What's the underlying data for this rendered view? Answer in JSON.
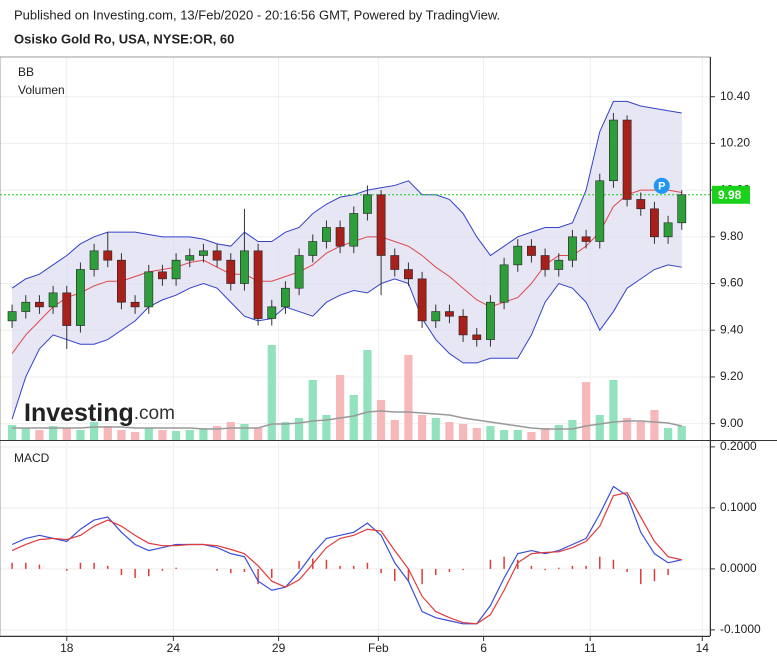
{
  "chart_data": [
    {
      "type": "candlestick",
      "subtitle": "Published on Investing.com, 13/Feb/2020 - 20:16:56 GMT, Powered by TradingView.",
      "title": "Osisko Gold Ro, USA, NYSE:OR, 60",
      "annotations": [
        "BB",
        "Volumen",
        "P"
      ],
      "logo": [
        "Investing",
        ".com"
      ],
      "x": [
        0,
        1,
        2,
        3,
        4,
        5,
        6,
        7,
        8,
        9,
        10,
        11,
        12,
        13,
        14,
        15,
        16,
        17,
        18,
        19,
        20,
        21,
        22,
        23,
        24,
        25,
        26,
        27,
        28,
        29,
        30,
        31,
        32,
        33,
        34,
        35,
        36,
        37,
        38,
        39,
        40,
        41,
        42,
        43,
        44,
        45,
        46,
        47,
        48,
        49
      ],
      "open": [
        9.44,
        9.48,
        9.52,
        9.5,
        9.56,
        9.42,
        9.66,
        9.74,
        9.7,
        9.52,
        9.5,
        9.65,
        9.62,
        9.7,
        9.72,
        9.74,
        9.7,
        9.6,
        9.74,
        9.45,
        9.5,
        9.58,
        9.72,
        9.78,
        9.84,
        9.76,
        9.9,
        9.98,
        9.72,
        9.66,
        9.62,
        9.44,
        9.48,
        9.46,
        9.38,
        9.36,
        9.52,
        9.68,
        9.76,
        9.72,
        9.66,
        9.7,
        9.8,
        9.78,
        10.04,
        10.3,
        9.96,
        9.92,
        9.8,
        9.86
      ],
      "high": [
        9.51,
        9.55,
        9.55,
        9.59,
        9.59,
        9.69,
        9.77,
        9.82,
        9.73,
        9.55,
        9.68,
        9.68,
        9.73,
        9.75,
        9.77,
        9.77,
        9.73,
        9.92,
        9.77,
        9.53,
        9.61,
        9.75,
        9.81,
        9.87,
        9.87,
        9.93,
        10.02,
        10.0,
        9.75,
        9.69,
        9.65,
        9.51,
        9.51,
        9.49,
        9.41,
        9.55,
        9.71,
        9.79,
        9.79,
        9.75,
        9.73,
        9.83,
        9.83,
        10.07,
        10.33,
        10.32,
        9.99,
        9.95,
        9.89,
        10.0
      ],
      "low": [
        9.41,
        9.45,
        9.47,
        9.47,
        9.32,
        9.39,
        9.63,
        9.67,
        9.49,
        9.47,
        9.47,
        9.59,
        9.59,
        9.67,
        9.69,
        9.67,
        9.57,
        9.57,
        9.42,
        9.42,
        9.47,
        9.55,
        9.69,
        9.75,
        9.73,
        9.73,
        9.87,
        9.55,
        9.63,
        9.59,
        9.41,
        9.41,
        9.43,
        9.35,
        9.33,
        9.33,
        9.49,
        9.65,
        9.69,
        9.63,
        9.63,
        9.67,
        9.75,
        9.75,
        10.01,
        9.93,
        9.89,
        9.77,
        9.77,
        9.83
      ],
      "close": [
        9.48,
        9.52,
        9.5,
        9.56,
        9.42,
        9.66,
        9.74,
        9.7,
        9.52,
        9.5,
        9.65,
        9.62,
        9.7,
        9.72,
        9.74,
        9.7,
        9.6,
        9.74,
        9.45,
        9.5,
        9.58,
        9.72,
        9.78,
        9.84,
        9.76,
        9.9,
        9.98,
        9.72,
        9.66,
        9.62,
        9.44,
        9.48,
        9.46,
        9.38,
        9.36,
        9.52,
        9.68,
        9.76,
        9.72,
        9.66,
        9.7,
        9.8,
        9.78,
        10.04,
        10.3,
        9.96,
        9.92,
        9.8,
        9.86,
        9.98
      ],
      "up_color": "#2e9e3a",
      "down_color": "#a8201a",
      "bollinger": {
        "line_color": "#3342c8",
        "fill": "#dcdcf0",
        "middle_color": "#e04848",
        "upper": [
          9.58,
          9.62,
          9.64,
          9.68,
          9.72,
          9.77,
          9.8,
          9.82,
          9.82,
          9.82,
          9.81,
          9.8,
          9.8,
          9.8,
          9.79,
          9.77,
          9.76,
          9.82,
          9.78,
          9.78,
          9.82,
          9.84,
          9.9,
          9.94,
          9.97,
          9.98,
          10.0,
          10.01,
          10.02,
          10.04,
          9.98,
          9.98,
          9.96,
          9.9,
          9.8,
          9.72,
          9.76,
          9.8,
          9.82,
          9.84,
          9.84,
          9.86,
          10.0,
          10.25,
          10.38,
          10.38,
          10.36,
          10.35,
          10.34,
          10.33
        ],
        "middle": [
          9.3,
          9.38,
          9.44,
          9.5,
          9.54,
          9.56,
          9.59,
          9.61,
          9.61,
          9.63,
          9.65,
          9.66,
          9.67,
          9.69,
          9.7,
          9.67,
          9.64,
          9.64,
          9.61,
          9.61,
          9.63,
          9.65,
          9.68,
          9.73,
          9.76,
          9.78,
          9.8,
          9.8,
          9.78,
          9.76,
          9.72,
          9.67,
          9.63,
          9.58,
          9.53,
          9.5,
          9.52,
          9.54,
          9.6,
          9.68,
          9.72,
          9.72,
          9.76,
          9.82,
          9.93,
          9.98,
          10.0,
          10.0,
          10.0,
          9.99
        ],
        "lower": [
          9.02,
          9.2,
          9.32,
          9.38,
          9.36,
          9.34,
          9.34,
          9.36,
          9.4,
          9.44,
          9.5,
          9.53,
          9.55,
          9.58,
          9.6,
          9.58,
          9.52,
          9.46,
          9.44,
          9.45,
          9.5,
          9.48,
          9.46,
          9.52,
          9.55,
          9.57,
          9.56,
          9.6,
          9.62,
          9.6,
          9.45,
          9.36,
          9.3,
          9.26,
          9.26,
          9.28,
          9.28,
          9.28,
          9.38,
          9.52,
          9.6,
          9.58,
          9.52,
          9.4,
          9.48,
          9.58,
          9.62,
          9.66,
          9.68,
          9.67
        ]
      },
      "volume": [
        15,
        12,
        10,
        14,
        12,
        10,
        18,
        14,
        10,
        8,
        12,
        10,
        9,
        10,
        12,
        14,
        18,
        16,
        12,
        95,
        18,
        22,
        60,
        25,
        65,
        45,
        90,
        40,
        20,
        85,
        25,
        22,
        18,
        16,
        12,
        14,
        10,
        10,
        8,
        12,
        15,
        20,
        58,
        25,
        60,
        22,
        18,
        30,
        12,
        14
      ],
      "volume_ma": [
        12,
        12,
        12,
        12,
        12,
        12,
        13,
        13,
        13,
        12,
        12,
        12,
        12,
        12,
        11,
        11,
        12,
        12,
        12,
        16,
        16,
        17,
        19,
        20,
        22,
        24,
        28,
        29,
        28,
        28,
        27,
        26,
        25,
        22,
        20,
        18,
        16,
        14,
        12,
        11,
        11,
        11,
        14,
        16,
        18,
        19,
        19,
        18,
        17,
        14
      ],
      "volume_up_color": "#92e3bd",
      "volume_down_color": "#f6b8b8",
      "volume_ma_color": "#999999",
      "y2lim": [
        0,
        100
      ],
      "last_price": {
        "value": 9.98,
        "label": "9.98"
      },
      "last_price_color": "#19d219",
      "xlim": [
        -0.3,
        50.7
      ],
      "xticks": [
        {
          "value": 4.0,
          "label": "18"
        },
        {
          "value": 11.8,
          "label": "24"
        },
        {
          "value": 19.5,
          "label": "29"
        },
        {
          "value": 26.8,
          "label": "Feb"
        },
        {
          "value": 34.5,
          "label": "6"
        },
        {
          "value": 42.3,
          "label": "11"
        },
        {
          "value": 50.5,
          "label": "14"
        }
      ],
      "ylim": [
        8.93,
        10.57
      ],
      "yticks": [
        {
          "value": 9.0,
          "label": "9.00"
        },
        {
          "value": 9.2,
          "label": "9.20"
        },
        {
          "value": 9.4,
          "label": "9.40"
        },
        {
          "value": 9.6,
          "label": "9.60"
        },
        {
          "value": 9.8,
          "label": "9.80"
        },
        {
          "value": 10.0,
          "label": "10.00"
        },
        {
          "value": 10.2,
          "label": "10.20"
        },
        {
          "value": 10.4,
          "label": "10.40"
        }
      ],
      "grid": true
    },
    {
      "type": "line",
      "title": "MACD",
      "x": [
        0,
        1,
        2,
        3,
        4,
        5,
        6,
        7,
        8,
        9,
        10,
        11,
        12,
        13,
        14,
        15,
        16,
        17,
        18,
        19,
        20,
        21,
        22,
        23,
        24,
        25,
        26,
        27,
        28,
        29,
        30,
        31,
        32,
        33,
        34,
        35,
        36,
        37,
        38,
        39,
        40,
        41,
        42,
        43,
        44,
        45,
        46,
        47,
        48,
        49
      ],
      "series": [
        {
          "color": "#3b4fd8",
          "values": [
            0.04,
            0.05,
            0.055,
            0.05,
            0.045,
            0.065,
            0.08,
            0.085,
            0.06,
            0.04,
            0.03,
            0.035,
            0.04,
            0.04,
            0.04,
            0.035,
            0.025,
            0.02,
            -0.02,
            -0.035,
            -0.03,
            -0.005,
            0.025,
            0.05,
            0.055,
            0.06,
            0.075,
            0.055,
            0.01,
            -0.02,
            -0.07,
            -0.08,
            -0.085,
            -0.09,
            -0.09,
            -0.06,
            -0.015,
            0.025,
            0.03,
            0.025,
            0.03,
            0.04,
            0.05,
            0.09,
            0.135,
            0.12,
            0.06,
            0.025,
            0.01,
            0.015
          ]
        },
        {
          "color": "#e03a3a",
          "values": [
            0.03,
            0.04,
            0.048,
            0.05,
            0.048,
            0.055,
            0.07,
            0.08,
            0.07,
            0.055,
            0.042,
            0.038,
            0.038,
            0.04,
            0.04,
            0.038,
            0.032,
            0.025,
            0.005,
            -0.02,
            -0.03,
            -0.018,
            0.008,
            0.035,
            0.05,
            0.055,
            0.065,
            0.062,
            0.03,
            0.0,
            -0.045,
            -0.07,
            -0.08,
            -0.088,
            -0.09,
            -0.075,
            -0.035,
            0.01,
            0.025,
            0.027,
            0.028,
            0.035,
            0.045,
            0.07,
            0.12,
            0.125,
            0.085,
            0.045,
            0.02,
            0.015
          ]
        }
      ],
      "histogram": {
        "color": "#e03a3a",
        "values": [
          0.01,
          0.01,
          0.007,
          0,
          -0.003,
          0.01,
          0.01,
          0.005,
          -0.01,
          -0.015,
          -0.012,
          -0.003,
          0.002,
          0,
          0,
          -0.003,
          -0.007,
          -0.005,
          -0.025,
          -0.015,
          0,
          0.013,
          0.017,
          0.015,
          0.005,
          0.005,
          0.01,
          -0.007,
          -0.02,
          -0.02,
          -0.025,
          -0.01,
          -0.005,
          -0.002,
          0,
          0.015,
          0.02,
          0.015,
          0.005,
          -0.002,
          0.002,
          0.005,
          0.005,
          0.02,
          0.015,
          -0.005,
          -0.025,
          -0.02,
          -0.01,
          0
        ]
      },
      "xlim": [
        -0.3,
        50.7
      ],
      "ylim": [
        -0.11,
        0.208
      ],
      "yticks": [
        {
          "value": -0.1,
          "label": "-0.1000"
        },
        {
          "value": 0,
          "label": "0.0000"
        },
        {
          "value": 0.1,
          "label": "0.1000"
        },
        {
          "value": 0.2,
          "label": "0.2000"
        }
      ],
      "grid": true
    }
  ]
}
